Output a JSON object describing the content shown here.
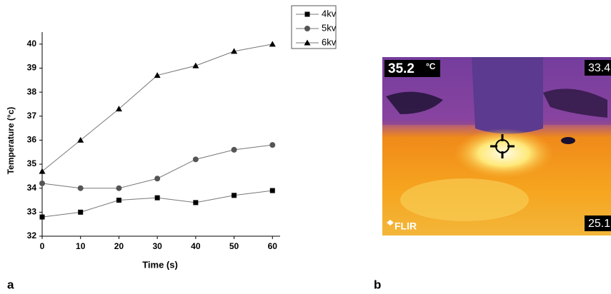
{
  "chart_data": {
    "type": "line",
    "x_label": "Time (s)",
    "y_label": "Temperature (°c)",
    "x": [
      0,
      10,
      20,
      30,
      40,
      50,
      60
    ],
    "series": [
      {
        "name": "4kv",
        "color": "#000000",
        "marker": "square",
        "values": [
          32.8,
          33.0,
          33.5,
          33.6,
          33.4,
          33.7,
          33.9
        ]
      },
      {
        "name": "5kv",
        "color": "#555555",
        "marker": "circle",
        "values": [
          34.2,
          34.0,
          34.0,
          34.4,
          35.2,
          35.6,
          35.8
        ]
      },
      {
        "name": "6kv",
        "color": "#000000",
        "marker": "triangle",
        "values": [
          34.7,
          36.0,
          37.3,
          38.7,
          39.1,
          39.7,
          40.0
        ]
      }
    ],
    "xlim": [
      0,
      62
    ],
    "ylim": [
      32,
      40.5
    ],
    "xticks": [
      0,
      10,
      20,
      30,
      40,
      50,
      60
    ],
    "yticks": [
      32,
      33,
      34,
      35,
      36,
      37,
      38,
      39,
      40
    ],
    "legend": "top-right",
    "grid": false
  },
  "figure": {
    "panel_labels": [
      "a",
      "b"
    ],
    "thermal_image": {
      "spot_reading": "35.2",
      "unit": "°C",
      "scale_max": "33.4",
      "scale_min": "25.1",
      "brand": "FLIR"
    }
  }
}
